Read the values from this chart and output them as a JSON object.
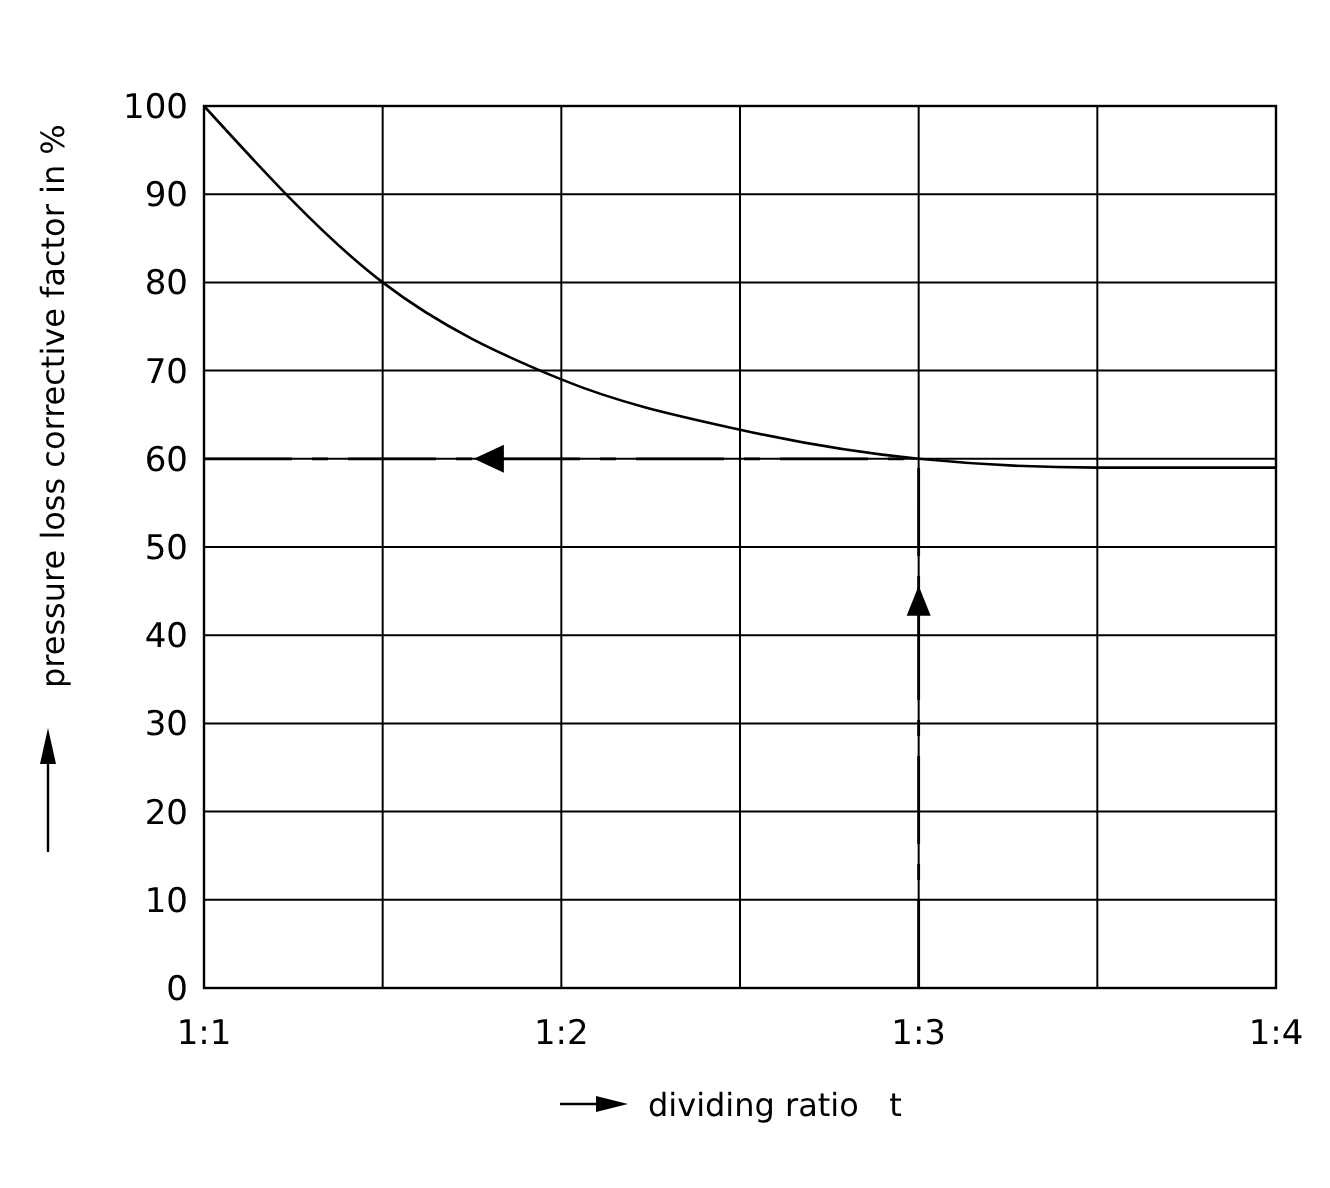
{
  "chart_data": {
    "type": "line",
    "xlabel": "dividing ratio   t",
    "ylabel": "pressure loss corrective factor in %",
    "categories": [
      "1:1",
      null,
      "1:2",
      null,
      "1:3",
      null,
      "1:4"
    ],
    "series": [
      {
        "color": "#000000",
        "values": [
          100,
          80,
          69,
          63.3,
          60,
          59,
          59
        ]
      }
    ],
    "ylim": [
      0,
      100
    ],
    "yticks": [
      0,
      10,
      20,
      30,
      40,
      50,
      60,
      70,
      80,
      90,
      100
    ],
    "grid": true,
    "marker": "none",
    "line_style": "solid",
    "ref_lines": [
      {
        "axis": "y",
        "value": 60,
        "line_style": "dashed",
        "color": "#000000"
      },
      {
        "axis": "x",
        "value": "1:3",
        "line_style": "dashed",
        "color": "#000000"
      }
    ]
  }
}
